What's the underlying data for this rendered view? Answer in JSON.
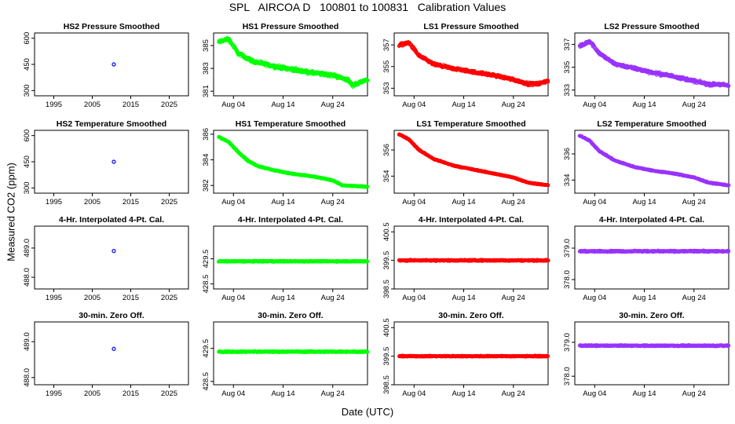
{
  "figure": {
    "title": "SPL   AIRCOA D   100801 to 100831   Calibration Values",
    "ylabel": "Measured CO2 (ppm)",
    "xlabel": "Date (UTC)"
  },
  "chart_data": [
    {
      "type": "scatter",
      "title": "HS2 Pressure Smoothed",
      "color": "#0000ff",
      "xaxis": "year",
      "xlim": [
        1990,
        2030
      ],
      "xticks": [
        "1995",
        "2005",
        "2015",
        "2025"
      ],
      "xtick_values": [
        1995,
        2005,
        2015,
        2025
      ],
      "ylim": [
        270,
        630
      ],
      "yticks": [
        "300",
        "450",
        "600"
      ],
      "ytick_values": [
        300,
        450,
        600
      ],
      "points": [
        [
          2010.6,
          450
        ]
      ]
    },
    {
      "type": "scatter",
      "title": "HS1 Pressure Smoothed",
      "color": "#00ff00",
      "xaxis": "date",
      "xlim": [
        0,
        31
      ],
      "xticks": [
        "Aug 04",
        "Aug 14",
        "Aug 24"
      ],
      "xtick_values": [
        4,
        14,
        24
      ],
      "ylim": [
        380.6,
        386.1
      ],
      "yticks": [
        "381",
        "383",
        "385"
      ],
      "ytick_values": [
        381,
        383,
        385
      ],
      "trend": [
        [
          1,
          385.3
        ],
        [
          3,
          385.6
        ],
        [
          5,
          384.3
        ],
        [
          8,
          383.6
        ],
        [
          12,
          383.2
        ],
        [
          16,
          382.9
        ],
        [
          20,
          382.6
        ],
        [
          24,
          382.4
        ],
        [
          27,
          382.0
        ],
        [
          28,
          381.5
        ],
        [
          29.5,
          381.8
        ],
        [
          31,
          382.0
        ]
      ],
      "noise": 0.35
    },
    {
      "type": "scatter",
      "title": "LS1 Pressure Smoothed",
      "color": "#ff0000",
      "xaxis": "date",
      "xlim": [
        0,
        31
      ],
      "xticks": [
        "Aug 04",
        "Aug 14",
        "Aug 24"
      ],
      "xtick_values": [
        4,
        14,
        24
      ],
      "ylim": [
        352.3,
        358.1
      ],
      "yticks": [
        "353",
        "355",
        "357"
      ],
      "ytick_values": [
        353,
        355,
        357
      ],
      "trend": [
        [
          1,
          357.0
        ],
        [
          3,
          357.2
        ],
        [
          5,
          356.0
        ],
        [
          8,
          355.2
        ],
        [
          12,
          354.8
        ],
        [
          16,
          354.5
        ],
        [
          20,
          354.2
        ],
        [
          24,
          353.8
        ],
        [
          27,
          353.4
        ],
        [
          29,
          353.4
        ],
        [
          31,
          353.7
        ]
      ],
      "noise": 0.3
    },
    {
      "type": "scatter",
      "title": "LS2 Pressure Smoothed",
      "color": "#9933ff",
      "xaxis": "date",
      "xlim": [
        0,
        31
      ],
      "xticks": [
        "Aug 04",
        "Aug 14",
        "Aug 24"
      ],
      "xtick_values": [
        4,
        14,
        24
      ],
      "ylim": [
        332.5,
        338.0
      ],
      "yticks": [
        "333",
        "335",
        "337"
      ],
      "ytick_values": [
        333,
        335,
        337
      ],
      "trend": [
        [
          1,
          336.8
        ],
        [
          3,
          337.3
        ],
        [
          5,
          336.2
        ],
        [
          8,
          335.3
        ],
        [
          12,
          334.9
        ],
        [
          16,
          334.5
        ],
        [
          20,
          334.2
        ],
        [
          24,
          333.8
        ],
        [
          27,
          333.5
        ],
        [
          29,
          333.5
        ],
        [
          31,
          333.4
        ]
      ],
      "noise": 0.3
    },
    {
      "type": "scatter",
      "title": "HS2 Temperature Smoothed",
      "color": "#0000ff",
      "xaxis": "year",
      "xlim": [
        1990,
        2030
      ],
      "xticks": [
        "1995",
        "2005",
        "2015",
        "2025"
      ],
      "xtick_values": [
        1995,
        2005,
        2015,
        2025
      ],
      "ylim": [
        270,
        630
      ],
      "yticks": [
        "300",
        "450",
        "600"
      ],
      "ytick_values": [
        300,
        450,
        600
      ],
      "points": [
        [
          2010.6,
          450
        ]
      ]
    },
    {
      "type": "scatter",
      "title": "HS1 Temperature Smoothed",
      "color": "#00ff00",
      "xaxis": "date",
      "xlim": [
        0,
        31
      ],
      "xticks": [
        "Aug 04",
        "Aug 14",
        "Aug 24"
      ],
      "xtick_values": [
        4,
        14,
        24
      ],
      "ylim": [
        381.4,
        386.3
      ],
      "yticks": [
        "382",
        "384",
        "386"
      ],
      "ytick_values": [
        382,
        384,
        386
      ],
      "trend": [
        [
          1,
          385.8
        ],
        [
          3,
          385.4
        ],
        [
          5,
          384.6
        ],
        [
          7,
          383.9
        ],
        [
          9,
          383.5
        ],
        [
          12,
          383.2
        ],
        [
          16,
          382.9
        ],
        [
          20,
          382.7
        ],
        [
          24,
          382.4
        ],
        [
          26,
          382.0
        ],
        [
          31,
          381.9
        ]
      ],
      "noise": 0.08
    },
    {
      "type": "scatter",
      "title": "LS1 Temperature Smoothed",
      "color": "#ff0000",
      "xaxis": "date",
      "xlim": [
        0,
        31
      ],
      "xticks": [
        "Aug 04",
        "Aug 14",
        "Aug 24"
      ],
      "xtick_values": [
        4,
        14,
        24
      ],
      "ylim": [
        352.7,
        357.5
      ],
      "yticks": [
        "354",
        "356"
      ],
      "ytick_values": [
        354,
        356
      ],
      "trend": [
        [
          1,
          357.2
        ],
        [
          3,
          356.8
        ],
        [
          5,
          356.0
        ],
        [
          8,
          355.3
        ],
        [
          12,
          354.8
        ],
        [
          16,
          354.5
        ],
        [
          20,
          354.2
        ],
        [
          24,
          353.9
        ],
        [
          27,
          353.5
        ],
        [
          31,
          353.3
        ]
      ],
      "noise": 0.08
    },
    {
      "type": "scatter",
      "title": "LS2 Temperature Smoothed",
      "color": "#9933ff",
      "xaxis": "date",
      "xlim": [
        0,
        31
      ],
      "xticks": [
        "Aug 04",
        "Aug 14",
        "Aug 24"
      ],
      "xtick_values": [
        4,
        14,
        24
      ],
      "ylim": [
        333.0,
        337.8
      ],
      "yticks": [
        "334",
        "336"
      ],
      "ytick_values": [
        334,
        336
      ],
      "trend": [
        [
          1,
          337.4
        ],
        [
          3,
          337.0
        ],
        [
          5,
          336.2
        ],
        [
          8,
          335.5
        ],
        [
          12,
          335.0
        ],
        [
          16,
          334.7
        ],
        [
          20,
          334.5
        ],
        [
          24,
          334.2
        ],
        [
          27,
          333.8
        ],
        [
          31,
          333.6
        ]
      ],
      "noise": 0.08
    },
    {
      "type": "scatter",
      "title": "4-Hr. Interpolated 4-Pt. Cal.",
      "color": "#0000ff",
      "xaxis": "year",
      "xlim": [
        1990,
        2030
      ],
      "xticks": [
        "1995",
        "2005",
        "2015",
        "2025"
      ],
      "xtick_values": [
        1995,
        2005,
        2015,
        2025
      ],
      "ylim": [
        487.6,
        489.75
      ],
      "yticks": [
        "488.0",
        "489.0"
      ],
      "ytick_values": [
        488.0,
        489.0
      ],
      "points": [
        [
          2010.6,
          488.9
        ]
      ]
    },
    {
      "type": "scatter",
      "title": "4-Hr. Interpolated 4-Pt. Cal.",
      "color": "#00ff00",
      "xaxis": "date",
      "xlim": [
        0,
        31
      ],
      "xticks": [
        "Aug 04",
        "Aug 14",
        "Aug 24"
      ],
      "xtick_values": [
        4,
        14,
        24
      ],
      "ylim": [
        428.3,
        430.8
      ],
      "yticks": [
        "428.5",
        "429.5"
      ],
      "ytick_values": [
        428.5,
        429.5
      ],
      "trend": [
        [
          1,
          429.4
        ],
        [
          31,
          429.4
        ]
      ],
      "noise": 0.05
    },
    {
      "type": "scatter",
      "title": "4-Hr. Interpolated 4-Pt. Cal.",
      "color": "#ff0000",
      "xaxis": "date",
      "xlim": [
        0,
        31
      ],
      "xticks": [
        "Aug 04",
        "Aug 14",
        "Aug 24"
      ],
      "xtick_values": [
        4,
        14,
        24
      ],
      "ylim": [
        398.5,
        400.7
      ],
      "yticks": [
        "398.5",
        "399.5",
        "400.5"
      ],
      "ytick_values": [
        398.5,
        399.5,
        400.5
      ],
      "trend": [
        [
          1,
          399.5
        ],
        [
          31,
          399.5
        ]
      ],
      "noise": 0.05
    },
    {
      "type": "scatter",
      "title": "4-Hr. Interpolated 4-Pt. Cal.",
      "color": "#9933ff",
      "xaxis": "date",
      "xlim": [
        0,
        31
      ],
      "xticks": [
        "Aug 04",
        "Aug 14",
        "Aug 24"
      ],
      "xtick_values": [
        4,
        14,
        24
      ],
      "ylim": [
        377.7,
        379.7
      ],
      "yticks": [
        "378.0",
        "379.0"
      ],
      "ytick_values": [
        378.0,
        379.0
      ],
      "trend": [
        [
          1,
          378.9
        ],
        [
          31,
          378.9
        ]
      ],
      "noise": 0.05
    },
    {
      "type": "scatter",
      "title": "30-min. Zero Off.",
      "color": "#0000ff",
      "xaxis": "year",
      "xlim": [
        1990,
        2030
      ],
      "xticks": [
        "1995",
        "2005",
        "2015",
        "2025"
      ],
      "xtick_values": [
        1995,
        2005,
        2015,
        2025
      ],
      "ylim": [
        487.8,
        489.55
      ],
      "yticks": [
        "488.0",
        "489.0"
      ],
      "ytick_values": [
        488.0,
        489.0
      ],
      "points": [
        [
          2010.6,
          488.8
        ]
      ]
    },
    {
      "type": "scatter",
      "title": "30-min. Zero Off.",
      "color": "#00ff00",
      "xaxis": "date",
      "xlim": [
        0,
        31
      ],
      "xticks": [
        "Aug 04",
        "Aug 14",
        "Aug 24"
      ],
      "xtick_values": [
        4,
        14,
        24
      ],
      "ylim": [
        428.4,
        430.3
      ],
      "yticks": [
        "428.5",
        "429.5"
      ],
      "ytick_values": [
        428.5,
        429.5
      ],
      "trend": [
        [
          1,
          429.4
        ],
        [
          31,
          429.4
        ]
      ],
      "noise": 0.04
    },
    {
      "type": "scatter",
      "title": "30-min. Zero Off.",
      "color": "#ff0000",
      "xaxis": "date",
      "xlim": [
        0,
        31
      ],
      "xticks": [
        "Aug 04",
        "Aug 14",
        "Aug 24"
      ],
      "xtick_values": [
        4,
        14,
        24
      ],
      "ylim": [
        398.5,
        400.7
      ],
      "yticks": [
        "398.5",
        "399.5",
        "400.5"
      ],
      "ytick_values": [
        398.5,
        399.5,
        400.5
      ],
      "trend": [
        [
          1,
          399.5
        ],
        [
          31,
          399.5
        ]
      ],
      "noise": 0.04
    },
    {
      "type": "scatter",
      "title": "30-min. Zero Off.",
      "color": "#9933ff",
      "xaxis": "date",
      "xlim": [
        0,
        31
      ],
      "xticks": [
        "Aug 04",
        "Aug 14",
        "Aug 24"
      ],
      "xtick_values": [
        4,
        14,
        24
      ],
      "ylim": [
        377.75,
        379.6
      ],
      "yticks": [
        "378.0",
        "379.0"
      ],
      "ytick_values": [
        378.0,
        379.0
      ],
      "trend": [
        [
          1,
          378.9
        ],
        [
          31,
          378.9
        ]
      ],
      "noise": 0.04
    }
  ]
}
